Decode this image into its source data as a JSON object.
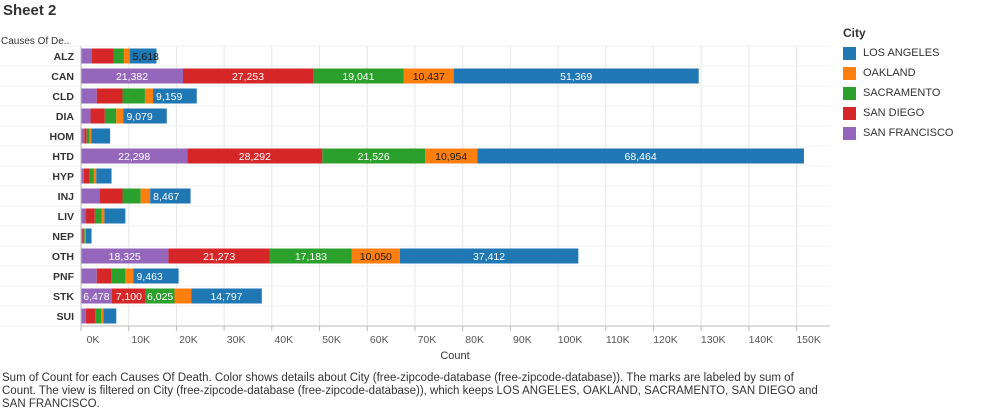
{
  "sheet": {
    "title": "Sheet 2"
  },
  "caption": "Sum of Count for each Causes Of Death.  Color shows details about City (free-zipcode-database (free-zipcode-database)).  The marks are labeled by sum of Count. The view is filtered on City (free-zipcode-database (free-zipcode-database)), which keeps LOS ANGELES, OAKLAND, SACRAMENTO, SAN DIEGO and SAN FRANCISCO.",
  "legend": {
    "title": "City",
    "items": [
      {
        "label": "LOS ANGELES",
        "color": "#1f77b4"
      },
      {
        "label": "OAKLAND",
        "color": "#ff7f0e"
      },
      {
        "label": "SACRAMENTO",
        "color": "#2ca02c"
      },
      {
        "label": "SAN DIEGO",
        "color": "#d62728"
      },
      {
        "label": "SAN FRANCISCO",
        "color": "#9467bd"
      }
    ]
  },
  "chart_data": {
    "type": "bar",
    "orientation": "horizontal",
    "stacked": true,
    "ylabel": "Causes Of De..",
    "xlabel": "Count",
    "xlim": [
      0,
      157000
    ],
    "xticks": [
      0,
      10000,
      20000,
      30000,
      40000,
      50000,
      60000,
      70000,
      80000,
      90000,
      100000,
      110000,
      120000,
      130000,
      140000,
      150000
    ],
    "xtick_labels": [
      "0K",
      "10K",
      "20K",
      "30K",
      "40K",
      "50K",
      "60K",
      "70K",
      "80K",
      "90K",
      "100K",
      "110K",
      "120K",
      "130K",
      "140K",
      "150K"
    ],
    "gridlines": "vertical",
    "categories": [
      "ALZ",
      "CAN",
      "CLD",
      "DIA",
      "HOM",
      "HTD",
      "HYP",
      "INJ",
      "LIV",
      "NEP",
      "OTH",
      "PNF",
      "STK",
      "SUI"
    ],
    "series": [
      {
        "name": "SAN FRANCISCO",
        "color": "#9467bd",
        "values": [
          2300,
          21382,
          3300,
          2000,
          700,
          22298,
          600,
          3900,
          900,
          300,
          18325,
          3300,
          6478,
          1000
        ],
        "labels": [
          "",
          "21,382",
          "",
          "",
          "",
          "22,298",
          "",
          "",
          "",
          "",
          "18,325",
          "",
          "6,478",
          ""
        ]
      },
      {
        "name": "SAN DIEGO",
        "color": "#d62728",
        "values": [
          4600,
          27253,
          5400,
          3000,
          500,
          28292,
          1200,
          4800,
          2000,
          300,
          21273,
          3000,
          7100,
          2000
        ],
        "labels": [
          "",
          "27,253",
          "",
          "",
          "",
          "28,292",
          "",
          "",
          "",
          "",
          "21,273",
          "",
          "7,100",
          ""
        ]
      },
      {
        "name": "SACRAMENTO",
        "color": "#2ca02c",
        "values": [
          2100,
          19041,
          4700,
          2400,
          600,
          21526,
          900,
          3800,
          1400,
          200,
          17183,
          3000,
          6025,
          1200
        ],
        "labels": [
          "",
          "19,041",
          "",
          "",
          "",
          "21,526",
          "",
          "",
          "",
          "",
          "17,183",
          "",
          "6,025",
          ""
        ]
      },
      {
        "name": "OAKLAND",
        "color": "#ff7f0e",
        "values": [
          1200,
          10437,
          1700,
          1500,
          400,
          10954,
          500,
          2000,
          600,
          200,
          10050,
          1700,
          3500,
          500
        ],
        "labels": [
          "",
          "10,437",
          "",
          "",
          "",
          "10,954",
          "",
          "",
          "",
          "",
          "10,050",
          "",
          "",
          ""
        ]
      },
      {
        "name": "LOS ANGELES",
        "color": "#1f77b4",
        "values": [
          5618,
          51369,
          9159,
          9079,
          3900,
          68464,
          3200,
          8467,
          4400,
          1200,
          37412,
          9463,
          14797,
          2700
        ],
        "labels": [
          "5,618",
          "51,369",
          "9,159",
          "9,079",
          "",
          "68,464",
          "",
          "8,467",
          "",
          "",
          "37,412",
          "9,463",
          "14,797",
          ""
        ]
      }
    ]
  }
}
